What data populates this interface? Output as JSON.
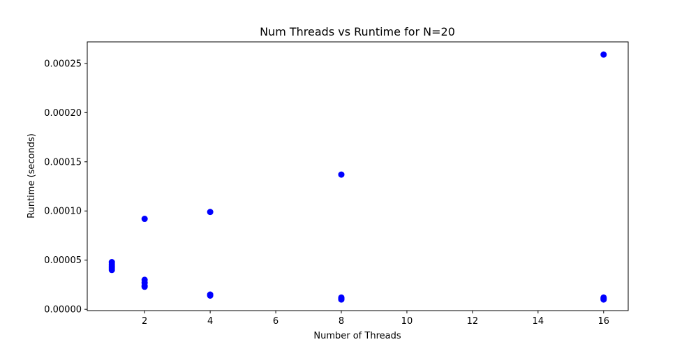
{
  "chart_data": {
    "type": "scatter",
    "title": "Num Threads vs Runtime for N=20",
    "xlabel": "Number of Threads",
    "ylabel": "Runtime (seconds)",
    "xlim": [
      0.25,
      16.75
    ],
    "ylim": [
      -1.3e-06,
      0.0002719
    ],
    "xticks": [
      2,
      4,
      6,
      8,
      10,
      12,
      14,
      16
    ],
    "xtick_labels": [
      "2",
      "4",
      "6",
      "8",
      "10",
      "12",
      "14",
      "16"
    ],
    "yticks": [
      0,
      5e-05,
      0.0001,
      0.00015,
      0.0002,
      0.00025
    ],
    "ytick_labels": [
      "0.00000",
      "0.00005",
      "0.00010",
      "0.00015",
      "0.00020",
      "0.00025"
    ],
    "grid": false,
    "marker_color": "#0000ff",
    "points": [
      {
        "x": 1,
        "y": 4.8e-05
      },
      {
        "x": 1,
        "y": 4.6e-05
      },
      {
        "x": 1,
        "y": 4.4e-05
      },
      {
        "x": 1,
        "y": 4.2e-05
      },
      {
        "x": 1,
        "y": 4e-05
      },
      {
        "x": 2,
        "y": 9.2e-05
      },
      {
        "x": 2,
        "y": 3e-05
      },
      {
        "x": 2,
        "y": 2.7e-05
      },
      {
        "x": 2,
        "y": 2.4e-05
      },
      {
        "x": 2,
        "y": 2.3e-05
      },
      {
        "x": 4,
        "y": 9.9e-05
      },
      {
        "x": 4,
        "y": 1.5e-05
      },
      {
        "x": 4,
        "y": 1.4e-05
      },
      {
        "x": 8,
        "y": 0.000137
      },
      {
        "x": 8,
        "y": 1.2e-05
      },
      {
        "x": 8,
        "y": 1.1e-05
      },
      {
        "x": 8,
        "y": 1e-05
      },
      {
        "x": 16,
        "y": 0.000259
      },
      {
        "x": 16,
        "y": 1.2e-05
      },
      {
        "x": 16,
        "y": 1.1e-05
      },
      {
        "x": 16,
        "y": 1e-05
      }
    ]
  }
}
